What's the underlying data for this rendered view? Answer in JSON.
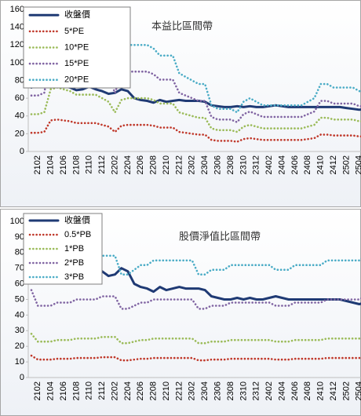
{
  "chart_data": [
    {
      "type": "line",
      "title": "本益比區間帶",
      "categories": [
        null,
        "2102",
        null,
        "2104",
        null,
        "2106",
        null,
        "2108",
        null,
        "2110",
        null,
        "2112",
        null,
        "2202",
        null,
        "2204",
        null,
        "2206",
        null,
        "2208",
        null,
        "2210",
        null,
        "2212",
        null,
        "2302",
        null,
        "2304",
        null,
        "2306",
        null,
        "2308",
        null,
        "2310",
        null,
        "2312",
        null,
        "2402",
        null,
        "2404",
        null,
        "2406",
        null,
        "2408",
        null,
        "2410",
        null,
        "2412",
        null,
        "2502",
        null,
        "2504",
        null
      ],
      "ylim": [
        0,
        160
      ],
      "yticks": [
        0,
        20,
        40,
        60,
        80,
        100,
        120,
        140,
        160
      ],
      "grid": false,
      "legend": "upper-left",
      "series": [
        {
          "name": "收盤價",
          "color": "#1f3a74",
          "style": "solid",
          "values": [
            72,
            88,
            82,
            85,
            75,
            74,
            72,
            69,
            70,
            73,
            70,
            68,
            65,
            66,
            70,
            68,
            60,
            58,
            57,
            55,
            58,
            56,
            57,
            58,
            57,
            57,
            57,
            56,
            52,
            51,
            50,
            50,
            51,
            50,
            51,
            50,
            50,
            51,
            52,
            51,
            50,
            50,
            50,
            50,
            50,
            50,
            50,
            50,
            50,
            49,
            48,
            47,
            48
          ]
        },
        {
          "name": "5*PE",
          "color": "#c0392b",
          "style": "dotted",
          "values": [
            21,
            21,
            22,
            35,
            36,
            35,
            34,
            32,
            32,
            32,
            32,
            30,
            28,
            22,
            29,
            30,
            30,
            30,
            30,
            29,
            27,
            27,
            27,
            22,
            21,
            20,
            19,
            19,
            13,
            12,
            12,
            12,
            11,
            14,
            15,
            14,
            13,
            13,
            13,
            13,
            13,
            13,
            13,
            14,
            15,
            19,
            19,
            18,
            18,
            18,
            18,
            17,
            17
          ]
        },
        {
          "name": "10*PE",
          "color": "#9bbb59",
          "style": "dotted",
          "values": [
            42,
            42,
            44,
            70,
            72,
            70,
            68,
            64,
            64,
            64,
            64,
            60,
            56,
            44,
            58,
            60,
            60,
            60,
            60,
            58,
            54,
            54,
            54,
            44,
            42,
            40,
            38,
            38,
            26,
            24,
            24,
            24,
            22,
            28,
            30,
            28,
            26,
            26,
            26,
            26,
            26,
            26,
            26,
            28,
            30,
            38,
            38,
            36,
            36,
            36,
            36,
            34,
            34
          ]
        },
        {
          "name": "15*PE",
          "color": "#8064a2",
          "style": "dotted",
          "values": [
            63,
            63,
            66,
            105,
            108,
            105,
            102,
            96,
            96,
            96,
            96,
            90,
            84,
            66,
            87,
            90,
            90,
            90,
            90,
            87,
            81,
            81,
            81,
            66,
            63,
            60,
            57,
            57,
            39,
            36,
            36,
            36,
            33,
            42,
            45,
            42,
            39,
            39,
            39,
            39,
            39,
            39,
            39,
            42,
            45,
            57,
            57,
            54,
            54,
            54,
            54,
            51,
            51
          ]
        },
        {
          "name": "20*PE",
          "color": "#4bacc6",
          "style": "dotted",
          "values": [
            84,
            84,
            88,
            140,
            144,
            140,
            136,
            128,
            128,
            128,
            128,
            120,
            112,
            88,
            116,
            120,
            120,
            120,
            120,
            116,
            108,
            108,
            108,
            88,
            84,
            80,
            76,
            76,
            52,
            48,
            48,
            48,
            44,
            56,
            60,
            56,
            52,
            52,
            52,
            52,
            52,
            52,
            52,
            56,
            60,
            76,
            76,
            72,
            72,
            72,
            72,
            68,
            68
          ]
        }
      ]
    },
    {
      "type": "line",
      "title": "股價淨值比區間帶",
      "categories": [
        null,
        "2102",
        null,
        "2104",
        null,
        "2106",
        null,
        "2108",
        null,
        "2110",
        null,
        "2112",
        null,
        "2202",
        null,
        "2204",
        null,
        "2206",
        null,
        "2208",
        null,
        "2210",
        null,
        "2212",
        null,
        "2302",
        null,
        "2304",
        null,
        "2306",
        null,
        "2308",
        null,
        "2310",
        null,
        "2312",
        null,
        "2402",
        null,
        "2404",
        null,
        "2406",
        null,
        "2408",
        null,
        "2410",
        null,
        "2412",
        null,
        "2502",
        null,
        "2504",
        null
      ],
      "ylim": [
        0,
        100
      ],
      "yticks": [
        0,
        10,
        20,
        30,
        40,
        50,
        60,
        70,
        80,
        90,
        100
      ],
      "grid": false,
      "legend": "upper-left",
      "series": [
        {
          "name": "收盤價",
          "color": "#1f3a74",
          "style": "solid",
          "values": [
            72,
            88,
            82,
            85,
            75,
            74,
            72,
            69,
            70,
            73,
            70,
            68,
            65,
            66,
            70,
            68,
            60,
            58,
            57,
            55,
            58,
            56,
            57,
            58,
            57,
            57,
            57,
            56,
            52,
            51,
            50,
            50,
            51,
            50,
            51,
            50,
            50,
            51,
            52,
            51,
            50,
            50,
            50,
            50,
            50,
            50,
            50,
            50,
            50,
            49,
            48,
            47,
            48
          ]
        },
        {
          "name": "0.5*PB",
          "color": "#c0392b",
          "style": "dotted",
          "values": [
            14,
            11.5,
            11.5,
            11.5,
            12,
            12,
            12,
            12.5,
            12.5,
            12.5,
            12.5,
            13,
            13,
            13,
            11,
            11,
            11.5,
            12,
            12,
            12.5,
            12.5,
            12.5,
            12.5,
            12.5,
            12.5,
            12.5,
            11,
            11,
            11.5,
            11.5,
            11.5,
            12,
            12,
            12,
            12,
            12,
            12,
            12,
            11.5,
            11.5,
            11.5,
            12,
            12,
            12,
            12,
            12,
            12.5,
            12.5,
            12.5,
            12.5,
            12.5,
            12.5,
            13
          ]
        },
        {
          "name": "1*PB",
          "color": "#9bbb59",
          "style": "dotted",
          "values": [
            28,
            23,
            23,
            23,
            24,
            24,
            24,
            25,
            25,
            25,
            25,
            26,
            26,
            26,
            22,
            22,
            23,
            24,
            24,
            25,
            25,
            25,
            25,
            25,
            25,
            25,
            22,
            22,
            23,
            23,
            23,
            24,
            24,
            24,
            24,
            24,
            24,
            24,
            23,
            23,
            23,
            24,
            24,
            24,
            24,
            24,
            25,
            25,
            25,
            25,
            25,
            25,
            26
          ]
        },
        {
          "name": "2*PB",
          "color": "#8064a2",
          "style": "dotted",
          "values": [
            56,
            46,
            46,
            46,
            48,
            48,
            48,
            50,
            50,
            50,
            50,
            52,
            52,
            52,
            44,
            44,
            46,
            48,
            48,
            50,
            50,
            50,
            50,
            50,
            50,
            50,
            44,
            44,
            46,
            46,
            46,
            48,
            48,
            48,
            48,
            48,
            48,
            48,
            46,
            46,
            46,
            48,
            48,
            48,
            48,
            48,
            50,
            50,
            50,
            50,
            50,
            50,
            52
          ]
        },
        {
          "name": "3*PB",
          "color": "#4bacc6",
          "style": "dotted",
          "values": [
            84,
            69,
            69,
            69,
            72,
            72,
            72,
            75,
            75,
            75,
            75,
            78,
            78,
            78,
            66,
            66,
            69,
            72,
            72,
            75,
            75,
            75,
            75,
            75,
            75,
            75,
            66,
            66,
            69,
            69,
            69,
            72,
            72,
            72,
            72,
            72,
            72,
            72,
            69,
            69,
            69,
            72,
            72,
            72,
            72,
            72,
            75,
            75,
            75,
            75,
            75,
            75,
            78
          ]
        }
      ]
    }
  ]
}
